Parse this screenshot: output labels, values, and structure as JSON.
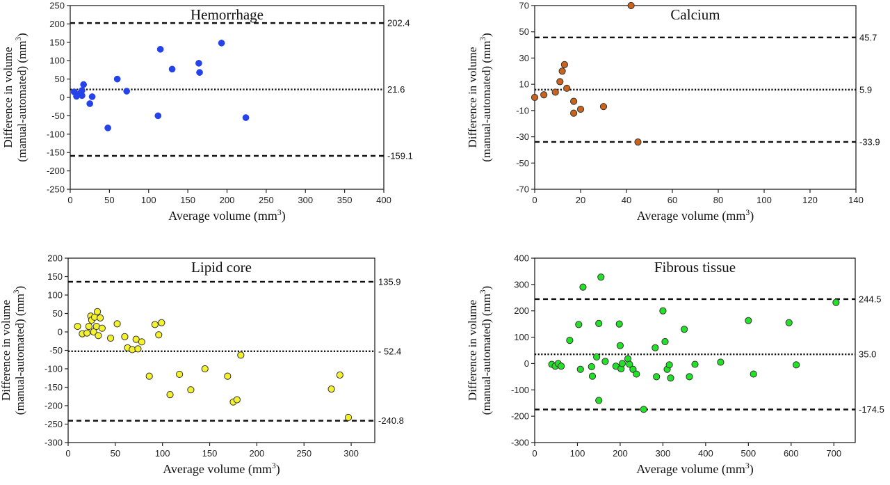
{
  "chart_data": [
    {
      "type": "scatter",
      "title": "Hemorrhage",
      "xlabel": "Average volume (mm³)",
      "ylabel": [
        "Difference in volume",
        "(manual-automated) (mm³)"
      ],
      "xlim": [
        0,
        400
      ],
      "ylim": [
        -250,
        250
      ],
      "xticks": [
        0,
        50,
        100,
        150,
        200,
        250,
        300,
        350,
        400
      ],
      "yticks": [
        -250,
        -200,
        -150,
        -100,
        -50,
        0,
        50,
        100,
        150,
        200,
        250
      ],
      "color": "#2643e9",
      "lines": [
        {
          "kind": "limit",
          "value": 202.4,
          "label": "202.4"
        },
        {
          "kind": "mean",
          "value": 21.6,
          "label": "21.6"
        },
        {
          "kind": "limit",
          "value": -159.1,
          "label": "-159.1"
        }
      ],
      "points": [
        {
          "x": 5,
          "y": 15
        },
        {
          "x": 8,
          "y": 3
        },
        {
          "x": 13,
          "y": 12
        },
        {
          "x": 15,
          "y": 19
        },
        {
          "x": 17,
          "y": 35
        },
        {
          "x": 15,
          "y": 5
        },
        {
          "x": 25,
          "y": -17
        },
        {
          "x": 28,
          "y": 2
        },
        {
          "x": 48,
          "y": -83
        },
        {
          "x": 60,
          "y": 50
        },
        {
          "x": 72,
          "y": 17
        },
        {
          "x": 112,
          "y": -50
        },
        {
          "x": 115,
          "y": 131
        },
        {
          "x": 130,
          "y": 77
        },
        {
          "x": 164,
          "y": 93
        },
        {
          "x": 165,
          "y": 68
        },
        {
          "x": 193,
          "y": 148
        },
        {
          "x": 224,
          "y": -55
        }
      ]
    },
    {
      "type": "scatter",
      "title": "Calcium",
      "xlabel": "Average volume (mm³)",
      "ylabel": [
        "Difference in volume",
        "(manual-automated) (mm³)"
      ],
      "xlim": [
        0,
        140
      ],
      "ylim": [
        -70,
        70
      ],
      "xticks": [
        0,
        20,
        40,
        60,
        80,
        100,
        120,
        140
      ],
      "yticks": [
        -70,
        -50,
        -30,
        -10,
        10,
        30,
        50,
        70
      ],
      "color": "#c8641e",
      "lines": [
        {
          "kind": "limit",
          "value": 45.7,
          "label": "45.7"
        },
        {
          "kind": "mean",
          "value": 5.9,
          "label": "5.9"
        },
        {
          "kind": "limit",
          "value": -33.9,
          "label": "-33.9"
        }
      ],
      "points": [
        {
          "x": 0,
          "y": 0
        },
        {
          "x": 4,
          "y": 2
        },
        {
          "x": 9,
          "y": 4
        },
        {
          "x": 11,
          "y": 12
        },
        {
          "x": 12,
          "y": 20
        },
        {
          "x": 13,
          "y": 25
        },
        {
          "x": 14,
          "y": 7
        },
        {
          "x": 17,
          "y": -3
        },
        {
          "x": 17,
          "y": -12
        },
        {
          "x": 20,
          "y": -9
        },
        {
          "x": 30,
          "y": -7
        },
        {
          "x": 42,
          "y": 70
        },
        {
          "x": 45,
          "y": -34
        }
      ]
    },
    {
      "type": "scatter",
      "title": "Lipid core",
      "xlabel": "Average volume (mm³)",
      "ylabel": [
        "Difference in volume",
        "(manual-automated) (mm³)"
      ],
      "xlim": [
        0,
        325
      ],
      "ylim": [
        -300,
        200
      ],
      "xticks": [
        0,
        50,
        100,
        150,
        200,
        250,
        300
      ],
      "yticks": [
        -300,
        -250,
        -200,
        -150,
        -100,
        -50,
        0,
        50,
        100,
        150,
        200
      ],
      "color": "#f4f22e",
      "lines": [
        {
          "kind": "limit",
          "value": 135.9,
          "label": "135.9"
        },
        {
          "kind": "mean",
          "value": -52.4,
          "label": "- 52.4"
        },
        {
          "kind": "limit",
          "value": -240.8,
          "label": "-240.8"
        }
      ],
      "points": [
        {
          "x": 10,
          "y": 15
        },
        {
          "x": 15,
          "y": -5
        },
        {
          "x": 20,
          "y": -3
        },
        {
          "x": 22,
          "y": 15
        },
        {
          "x": 24,
          "y": 43
        },
        {
          "x": 25,
          "y": 32
        },
        {
          "x": 27,
          "y": 0
        },
        {
          "x": 28,
          "y": 40
        },
        {
          "x": 30,
          "y": 15
        },
        {
          "x": 31,
          "y": 55
        },
        {
          "x": 32,
          "y": -10
        },
        {
          "x": 34,
          "y": 38
        },
        {
          "x": 36,
          "y": 10
        },
        {
          "x": 45,
          "y": -17
        },
        {
          "x": 52,
          "y": 22
        },
        {
          "x": 60,
          "y": -13
        },
        {
          "x": 63,
          "y": -43
        },
        {
          "x": 68,
          "y": -48
        },
        {
          "x": 72,
          "y": -20
        },
        {
          "x": 74,
          "y": -46
        },
        {
          "x": 78,
          "y": -27
        },
        {
          "x": 86,
          "y": -120
        },
        {
          "x": 92,
          "y": 20
        },
        {
          "x": 96,
          "y": -8
        },
        {
          "x": 99,
          "y": 25
        },
        {
          "x": 108,
          "y": -170
        },
        {
          "x": 118,
          "y": -115
        },
        {
          "x": 130,
          "y": -157
        },
        {
          "x": 145,
          "y": -100
        },
        {
          "x": 169,
          "y": -120
        },
        {
          "x": 175,
          "y": -190
        },
        {
          "x": 179,
          "y": -184
        },
        {
          "x": 183,
          "y": -63
        },
        {
          "x": 279,
          "y": -155
        },
        {
          "x": 288,
          "y": -117
        },
        {
          "x": 297,
          "y": -232
        }
      ]
    },
    {
      "type": "scatter",
      "title": "Fibrous tissue",
      "xlabel": "Average volume (mm³)",
      "ylabel": [
        "Difference in volume",
        "(manual-automated) (mm³)"
      ],
      "xlim": [
        0,
        750
      ],
      "ylim": [
        -300,
        400
      ],
      "xticks": [
        0,
        100,
        200,
        300,
        400,
        500,
        600,
        700
      ],
      "yticks": [
        -300,
        -200,
        -100,
        0,
        100,
        200,
        300,
        400
      ],
      "color": "#22e227",
      "lines": [
        {
          "kind": "limit",
          "value": 244.5,
          "label": "244.5"
        },
        {
          "kind": "mean",
          "value": 35.0,
          "label": "35.0"
        },
        {
          "kind": "limit",
          "value": -174.5,
          "label": "-174.5"
        }
      ],
      "points": [
        {
          "x": 40,
          "y": -3
        },
        {
          "x": 48,
          "y": -10
        },
        {
          "x": 55,
          "y": 0
        },
        {
          "x": 62,
          "y": -10
        },
        {
          "x": 82,
          "y": 88
        },
        {
          "x": 103,
          "y": 148
        },
        {
          "x": 107,
          "y": -22
        },
        {
          "x": 113,
          "y": 290
        },
        {
          "x": 133,
          "y": -12
        },
        {
          "x": 135,
          "y": -48
        },
        {
          "x": 145,
          "y": 25
        },
        {
          "x": 150,
          "y": 152
        },
        {
          "x": 150,
          "y": -140
        },
        {
          "x": 155,
          "y": 328
        },
        {
          "x": 165,
          "y": 8
        },
        {
          "x": 190,
          "y": -10
        },
        {
          "x": 198,
          "y": 150
        },
        {
          "x": 200,
          "y": 68
        },
        {
          "x": 202,
          "y": -20
        },
        {
          "x": 205,
          "y": 0
        },
        {
          "x": 218,
          "y": 18
        },
        {
          "x": 222,
          "y": -3
        },
        {
          "x": 230,
          "y": -22
        },
        {
          "x": 238,
          "y": -40
        },
        {
          "x": 255,
          "y": -174
        },
        {
          "x": 282,
          "y": 60
        },
        {
          "x": 285,
          "y": -50
        },
        {
          "x": 300,
          "y": 200
        },
        {
          "x": 305,
          "y": 83
        },
        {
          "x": 310,
          "y": -22
        },
        {
          "x": 315,
          "y": -5
        },
        {
          "x": 318,
          "y": -55
        },
        {
          "x": 350,
          "y": 130
        },
        {
          "x": 362,
          "y": -50
        },
        {
          "x": 375,
          "y": -3
        },
        {
          "x": 435,
          "y": 5
        },
        {
          "x": 500,
          "y": 163
        },
        {
          "x": 512,
          "y": -40
        },
        {
          "x": 595,
          "y": 155
        },
        {
          "x": 612,
          "y": -5
        },
        {
          "x": 705,
          "y": 232
        }
      ]
    }
  ]
}
